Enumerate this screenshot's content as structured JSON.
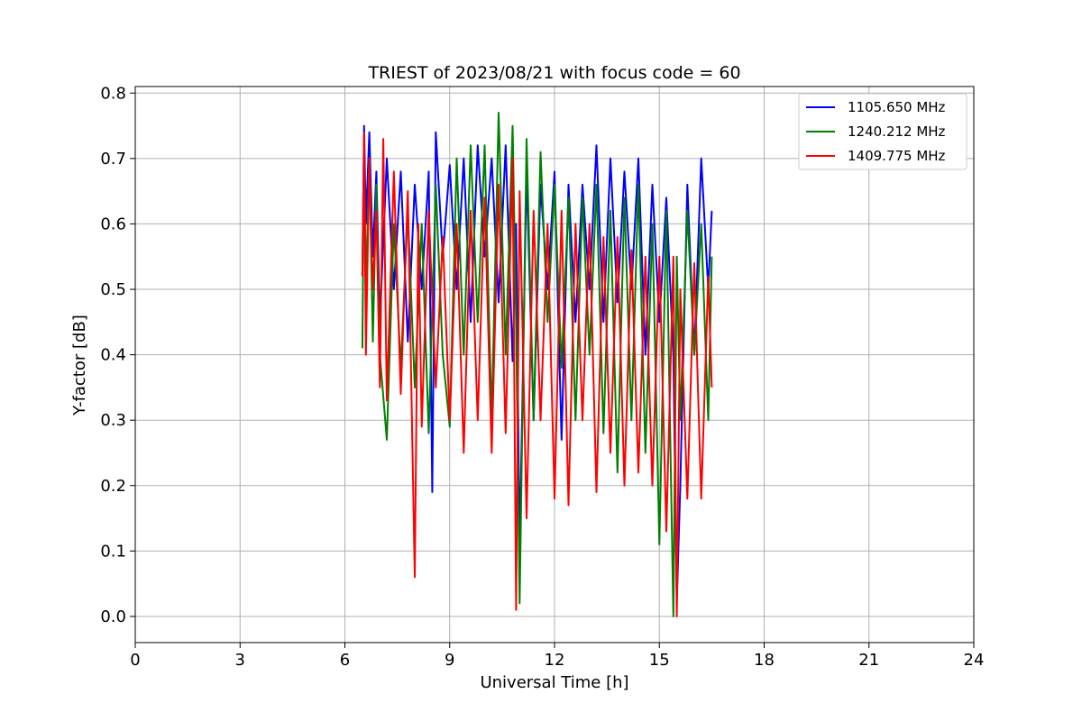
{
  "chart_data": {
    "type": "line",
    "title": "TRIEST of 2023/08/21 with focus code = 60",
    "xlabel": "Universal Time [h]",
    "ylabel": "Y-factor [dB]",
    "xlim": [
      0,
      24
    ],
    "ylim": [
      -0.04,
      0.81
    ],
    "xticks": [
      0,
      3,
      6,
      9,
      12,
      15,
      18,
      21,
      24
    ],
    "xtick_labels": [
      "0",
      "3",
      "6",
      "9",
      "12",
      "15",
      "18",
      "21",
      "24"
    ],
    "yticks": [
      0.0,
      0.1,
      0.2,
      0.3,
      0.4,
      0.5,
      0.6,
      0.7,
      0.8
    ],
    "ytick_labels": [
      "0.0",
      "0.1",
      "0.2",
      "0.3",
      "0.4",
      "0.5",
      "0.6",
      "0.7",
      "0.8"
    ],
    "grid": true,
    "legend_position": "top-right",
    "x_range_of_data": [
      6.5,
      16.5
    ],
    "series": [
      {
        "name": "1105.650 MHz",
        "color": "#0000ff",
        "x": [
          6.5,
          6.55,
          6.6,
          6.7,
          6.8,
          6.9,
          7.0,
          7.2,
          7.4,
          7.6,
          7.8,
          8.0,
          8.2,
          8.4,
          8.5,
          8.6,
          8.8,
          9.0,
          9.2,
          9.4,
          9.6,
          9.8,
          10.0,
          10.2,
          10.4,
          10.6,
          10.8,
          10.9,
          11.0,
          11.2,
          11.4,
          11.6,
          11.8,
          12.0,
          12.2,
          12.4,
          12.6,
          12.8,
          13.0,
          13.2,
          13.4,
          13.6,
          13.8,
          14.0,
          14.2,
          14.4,
          14.6,
          14.8,
          15.0,
          15.2,
          15.4,
          15.5,
          15.6,
          15.8,
          16.0,
          16.2,
          16.4,
          16.5
        ],
        "y": [
          0.52,
          0.75,
          0.6,
          0.74,
          0.55,
          0.68,
          0.45,
          0.7,
          0.5,
          0.68,
          0.42,
          0.66,
          0.5,
          0.68,
          0.19,
          0.74,
          0.55,
          0.69,
          0.5,
          0.7,
          0.45,
          0.72,
          0.55,
          0.7,
          0.48,
          0.72,
          0.39,
          0.6,
          0.1,
          0.68,
          0.3,
          0.66,
          0.5,
          0.68,
          0.27,
          0.66,
          0.45,
          0.66,
          0.5,
          0.72,
          0.45,
          0.7,
          0.48,
          0.68,
          0.5,
          0.7,
          0.4,
          0.66,
          0.45,
          0.64,
          0.4,
          0.02,
          0.2,
          0.66,
          0.4,
          0.7,
          0.5,
          0.62
        ]
      },
      {
        "name": "1240.212 MHz",
        "color": "#008000",
        "x": [
          6.5,
          6.55,
          6.6,
          6.7,
          6.8,
          6.9,
          7.0,
          7.2,
          7.4,
          7.6,
          7.8,
          8.0,
          8.2,
          8.4,
          8.6,
          8.8,
          9.0,
          9.2,
          9.4,
          9.6,
          9.8,
          10.0,
          10.2,
          10.4,
          10.6,
          10.8,
          10.9,
          11.0,
          11.2,
          11.4,
          11.6,
          11.8,
          12.0,
          12.2,
          12.4,
          12.6,
          12.8,
          13.0,
          13.2,
          13.4,
          13.6,
          13.8,
          14.0,
          14.2,
          14.4,
          14.6,
          14.8,
          15.0,
          15.2,
          15.4,
          15.5,
          15.6,
          15.8,
          16.0,
          16.2,
          16.4,
          16.5
        ],
        "y": [
          0.41,
          0.72,
          0.5,
          0.7,
          0.42,
          0.66,
          0.4,
          0.27,
          0.6,
          0.38,
          0.62,
          0.35,
          0.6,
          0.28,
          0.66,
          0.4,
          0.29,
          0.7,
          0.4,
          0.72,
          0.45,
          0.72,
          0.3,
          0.77,
          0.4,
          0.75,
          0.45,
          0.02,
          0.73,
          0.3,
          0.71,
          0.45,
          0.66,
          0.38,
          0.64,
          0.3,
          0.64,
          0.4,
          0.66,
          0.28,
          0.62,
          0.22,
          0.64,
          0.3,
          0.66,
          0.25,
          0.6,
          0.11,
          0.62,
          0.0,
          0.55,
          0.3,
          0.62,
          0.4,
          0.6,
          0.3,
          0.55
        ]
      },
      {
        "name": "1409.775 MHz",
        "color": "#ff0000",
        "x": [
          6.5,
          6.55,
          6.6,
          6.7,
          6.8,
          6.9,
          7.0,
          7.1,
          7.2,
          7.4,
          7.6,
          7.8,
          8.0,
          8.1,
          8.2,
          8.4,
          8.6,
          8.8,
          9.0,
          9.2,
          9.4,
          9.6,
          9.8,
          10.0,
          10.2,
          10.4,
          10.6,
          10.8,
          10.9,
          11.0,
          11.2,
          11.4,
          11.6,
          11.8,
          12.0,
          12.2,
          12.4,
          12.6,
          12.8,
          13.0,
          13.2,
          13.4,
          13.6,
          13.8,
          14.0,
          14.2,
          14.4,
          14.6,
          14.8,
          15.0,
          15.2,
          15.4,
          15.5,
          15.6,
          15.8,
          16.0,
          16.2,
          16.4,
          16.5
        ],
        "y": [
          0.52,
          0.74,
          0.4,
          0.7,
          0.5,
          0.62,
          0.35,
          0.73,
          0.33,
          0.68,
          0.34,
          0.65,
          0.06,
          0.6,
          0.29,
          0.62,
          0.35,
          0.58,
          0.3,
          0.6,
          0.25,
          0.62,
          0.3,
          0.64,
          0.25,
          0.66,
          0.28,
          0.7,
          0.01,
          0.65,
          0.15,
          0.62,
          0.3,
          0.6,
          0.18,
          0.62,
          0.17,
          0.6,
          0.3,
          0.6,
          0.19,
          0.58,
          0.25,
          0.58,
          0.2,
          0.56,
          0.22,
          0.55,
          0.2,
          0.55,
          0.13,
          0.55,
          0.0,
          0.5,
          0.18,
          0.54,
          0.18,
          0.52,
          0.35
        ]
      }
    ]
  }
}
